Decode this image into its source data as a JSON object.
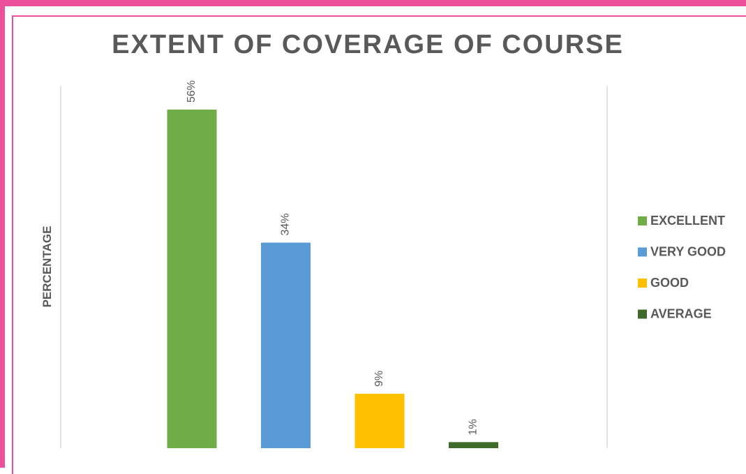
{
  "chart_data": {
    "type": "bar",
    "title": "EXTENT OF COVERAGE OF COURSE",
    "ylabel": "PERCENTAGE",
    "xlabel": "",
    "categories": [
      "EXCELLENT",
      "VERY GOOD",
      "GOOD",
      "AVERAGE"
    ],
    "values": [
      56,
      34,
      9,
      1
    ],
    "labels": [
      "56%",
      "34%",
      "9%",
      "1%"
    ],
    "colors": [
      "#70ad47",
      "#5b9bd5",
      "#ffc000",
      "#3f6b2a"
    ],
    "ylim": [
      0,
      56
    ],
    "grid": false,
    "legend_position": "right"
  },
  "colors": {
    "frame": "#ec4f9b",
    "text": "#595959",
    "axis_line": "#d9d9d9"
  }
}
